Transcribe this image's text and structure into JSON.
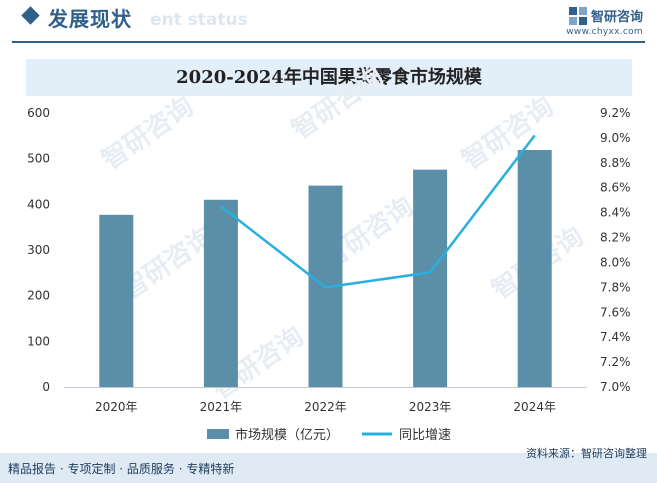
{
  "header": {
    "section_title": "发展现状",
    "section_watermark": "ent status",
    "brand_name": "智研咨询",
    "brand_url": "www.chyxx.com"
  },
  "chart_data": {
    "type": "bar",
    "title": "2020-2024年中国果类零食市场规模",
    "categories": [
      "2020年",
      "2021年",
      "2022年",
      "2023年",
      "2024年"
    ],
    "series": [
      {
        "name": "市场规模（亿元）",
        "type": "bar",
        "axis": "left",
        "values": [
          377,
          410,
          441,
          476,
          519
        ],
        "color": "#5b8fa8"
      },
      {
        "name": "同比增速",
        "type": "line",
        "axis": "right",
        "values": [
          null,
          8.45,
          7.8,
          7.92,
          9.02
        ],
        "color": "#29aee0"
      }
    ],
    "y_left": {
      "min": 0,
      "max": 600,
      "ticks": [
        "0",
        "100",
        "200",
        "300",
        "400",
        "500",
        "600"
      ]
    },
    "y_right": {
      "min": 7.0,
      "max": 9.2,
      "ticks": [
        "7.0%",
        "7.2%",
        "7.4%",
        "7.6%",
        "7.8%",
        "8.0%",
        "8.2%",
        "8.4%",
        "8.6%",
        "8.8%",
        "9.0%",
        "9.2%"
      ]
    },
    "grid": false,
    "legend_position": "bottom",
    "watermark_text": "智研咨询"
  },
  "footer": {
    "tagline": "精品报告 · 专项定制 · 品质服务 · 专精特新",
    "source": "资料来源：智研咨询整理"
  }
}
